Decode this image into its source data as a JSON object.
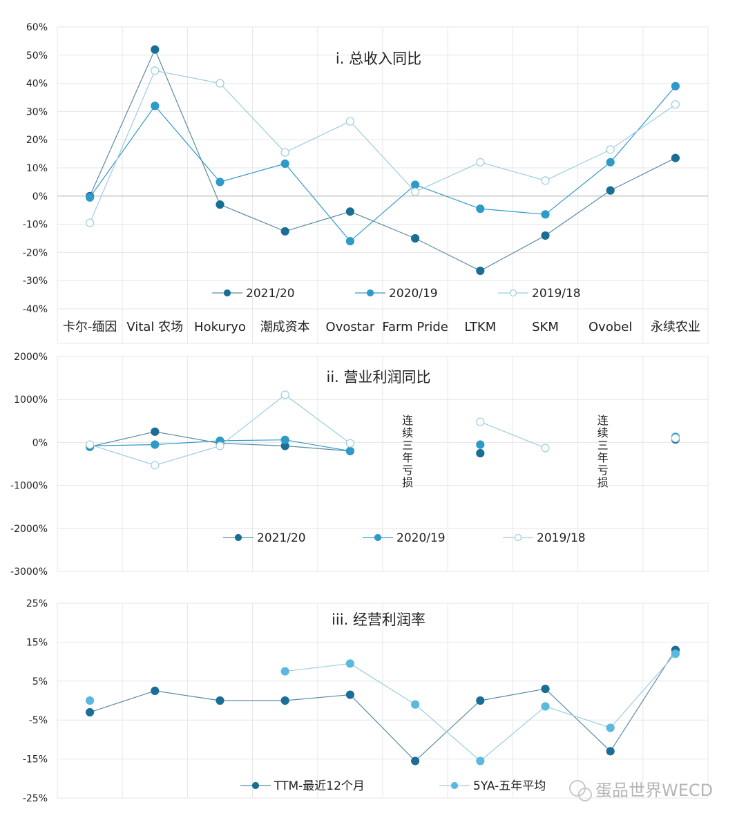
{
  "companies": [
    "卡尔-缅因",
    "Vital 农场",
    "Hokuryo",
    "潮成资本",
    "Ovostar",
    "Farm Pride",
    "LTKM",
    "SKM",
    "Ovobel",
    "永续农业"
  ],
  "watermark": "蛋品世界WECD",
  "colors": {
    "dark": "#1a6e96",
    "mid": "#2e9ac8",
    "light": "#5bb8de",
    "line_dark": "#5b8aa4",
    "line_light": "#9ccde0",
    "grid": "#e6e6e6",
    "text": "#222222"
  },
  "chart_data": [
    {
      "type": "line",
      "title": "i. 总收入同比",
      "categories": [
        "卡尔-缅因",
        "Vital 农场",
        "Hokuryo",
        "潮成资本",
        "Ovostar",
        "Farm Pride",
        "LTKM",
        "SKM",
        "Ovobel",
        "永续农业"
      ],
      "y_ticks": [
        "60%",
        "50%",
        "40%",
        "30%",
        "20%",
        "10%",
        "0%",
        "-10%",
        "-20%",
        "-30%",
        "-40%"
      ],
      "ylim": [
        -40,
        60
      ],
      "unit": "%",
      "series": [
        {
          "name": "2021/20",
          "style": "dark",
          "values": [
            0,
            52,
            -3,
            -12.5,
            -5.5,
            -15,
            -26.5,
            -14,
            2,
            13.5
          ]
        },
        {
          "name": "2020/19",
          "style": "mid",
          "values": [
            -0.5,
            32,
            5,
            11.5,
            -16,
            4,
            -4.5,
            -6.5,
            12,
            39
          ]
        },
        {
          "name": "2019/18",
          "style": "open",
          "values": [
            -9.5,
            44.5,
            40,
            15.5,
            26.5,
            1.5,
            12,
            5.5,
            16.5,
            32.5
          ]
        }
      ]
    },
    {
      "type": "line",
      "title": "ii. 营业利润同比",
      "categories": [
        "卡尔-缅因",
        "Vital 农场",
        "Hokuryo",
        "潮成资本",
        "Ovostar",
        "Farm Pride",
        "LTKM",
        "SKM",
        "Ovobel",
        "永续农业"
      ],
      "y_ticks": [
        "2000%",
        "1000%",
        "0%",
        "-1000%",
        "-2000%",
        "-3000%"
      ],
      "ylim": [
        -3000,
        2000
      ],
      "unit": "%",
      "annotations": [
        {
          "category": "Farm Pride",
          "text": "连续三年亏损"
        },
        {
          "category": "Ovobel",
          "text": "连续三年亏损"
        }
      ],
      "series": [
        {
          "name": "2021/20",
          "style": "dark",
          "values": [
            -100,
            250,
            -20,
            -80,
            -200,
            null,
            -250,
            null,
            null,
            70
          ]
        },
        {
          "name": "2020/19",
          "style": "mid",
          "values": [
            -80,
            -50,
            40,
            60,
            -200,
            null,
            -50,
            null,
            null,
            130
          ]
        },
        {
          "name": "2019/18",
          "style": "open",
          "values": [
            -50,
            -530,
            -80,
            1110,
            -20,
            null,
            480,
            -130,
            null,
            100
          ]
        }
      ]
    },
    {
      "type": "line",
      "title": "iii. 经营利润率",
      "categories": [
        "卡尔-缅因",
        "Vital 农场",
        "Hokuryo",
        "潮成资本",
        "Ovostar",
        "Farm Pride",
        "LTKM",
        "SKM",
        "Ovobel",
        "永续农业"
      ],
      "y_ticks": [
        "25%",
        "15%",
        "5%",
        "-5%",
        "-15%",
        "-25%"
      ],
      "ylim": [
        -25,
        25
      ],
      "unit": "%",
      "series": [
        {
          "name": "TTM-最近12个月",
          "style": "dark",
          "values": [
            -3,
            2.5,
            0,
            0,
            1.5,
            -15.5,
            0,
            3,
            -13,
            13
          ]
        },
        {
          "name": "5YA-五年平均",
          "style": "light",
          "values": [
            0,
            null,
            null,
            7.5,
            9.5,
            -1,
            -15.5,
            -1.5,
            -7,
            12
          ]
        }
      ]
    }
  ]
}
